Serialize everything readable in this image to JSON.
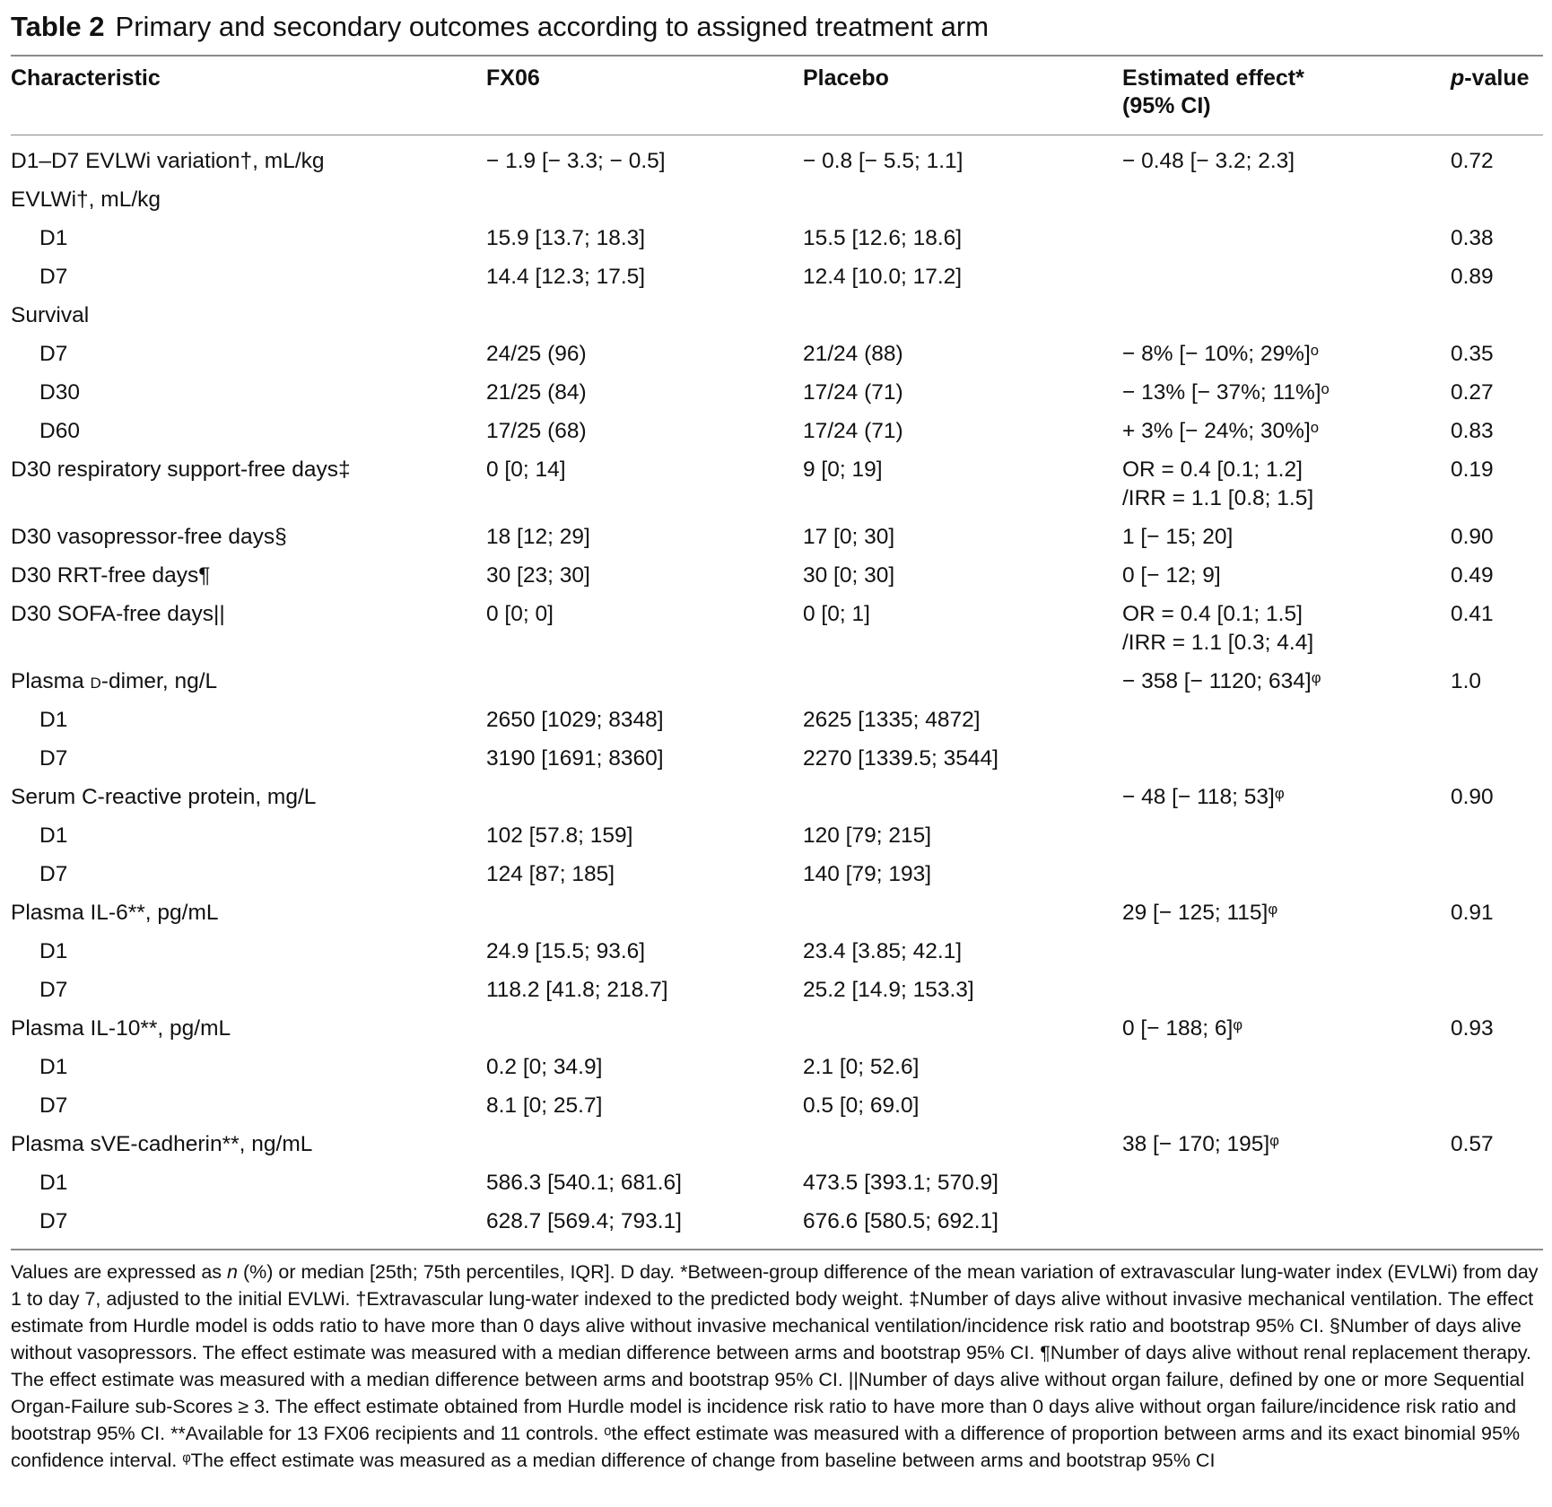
{
  "caption": {
    "label": "Table 2",
    "text": "Primary and secondary outcomes according to assigned treatment arm"
  },
  "headers": {
    "characteristic": "Characteristic",
    "fx06": "FX06",
    "placebo": "Placebo",
    "effect_line1": "Estimated effect*",
    "effect_line2": "(95% CI)",
    "pvalue_italic": "p",
    "pvalue_rest": "-value"
  },
  "rows": [
    {
      "label": "D1–D7 EVLWi variation†, mL/kg",
      "fx06": "− 1.9 [− 3.3; − 0.5]",
      "placebo": "− 0.8 [− 5.5; 1.1]",
      "effect": "− 0.48 [− 3.2; 2.3]",
      "p": "0.72"
    },
    {
      "label": "EVLWi†, mL/kg",
      "fx06": "",
      "placebo": "",
      "effect": "",
      "p": ""
    },
    {
      "label": "D1",
      "fx06": "15.9 [13.7; 18.3]",
      "placebo": "15.5 [12.6; 18.6]",
      "effect": "",
      "p": "0.38"
    },
    {
      "label": "D7",
      "fx06": "14.4 [12.3; 17.5]",
      "placebo": "12.4 [10.0; 17.2]",
      "effect": "",
      "p": "0.89"
    },
    {
      "label": "Survival",
      "fx06": "",
      "placebo": "",
      "effect": "",
      "p": ""
    },
    {
      "label": "D7",
      "fx06": "24/25 (96)",
      "placebo": "21/24 (88)",
      "effect": "− 8% [− 10%; 29%]ᵒ",
      "p": "0.35"
    },
    {
      "label": "D30",
      "fx06": "21/25 (84)",
      "placebo": "17/24 (71)",
      "effect": "− 13% [− 37%; 11%]ᵒ",
      "p": "0.27"
    },
    {
      "label": "D60",
      "fx06": "17/25 (68)",
      "placebo": "17/24 (71)",
      "effect": "+ 3% [− 24%; 30%]ᵒ",
      "p": "0.83"
    },
    {
      "label": "D30 respiratory support-free days‡",
      "fx06": "0 [0; 14]",
      "placebo": "9 [0; 19]",
      "effect": "OR = 0.4 [0.1; 1.2]\n/IRR = 1.1 [0.8; 1.5]",
      "p": "0.19"
    },
    {
      "label": "D30 vasopressor-free days§",
      "fx06": "18 [12; 29]",
      "placebo": "17 [0; 30]",
      "effect": "1 [− 15; 20]",
      "p": "0.90"
    },
    {
      "label": "D30 RRT-free days¶",
      "fx06": "30 [23; 30]",
      "placebo": "30 [0; 30]",
      "effect": "0 [− 12; 9]",
      "p": "0.49"
    },
    {
      "label": "D30 SOFA-free days||",
      "fx06": "0 [0; 0]",
      "placebo": "0 [0; 1]",
      "effect": "OR = 0.4 [0.1; 1.5]\n/IRR = 1.1 [0.3; 4.4]",
      "p": "0.41"
    },
    {
      "label_pre": "Plasma ",
      "label_sc": "d",
      "label_post": "-dimer, ng/L",
      "fx06": "",
      "placebo": "",
      "effect": "− 358 [− 1120; 634]ᵠ",
      "p": "1.0"
    },
    {
      "label": "D1",
      "fx06": "2650 [1029; 8348]",
      "placebo": "2625 [1335; 4872]",
      "effect": "",
      "p": ""
    },
    {
      "label": "D7",
      "fx06": "3190 [1691; 8360]",
      "placebo": "2270 [1339.5; 3544]",
      "effect": "",
      "p": ""
    },
    {
      "label": "Serum C-reactive protein, mg/L",
      "fx06": "",
      "placebo": "",
      "effect": "− 48 [− 118; 53]ᵠ",
      "p": "0.90"
    },
    {
      "label": "D1",
      "fx06": "102 [57.8; 159]",
      "placebo": "120 [79; 215]",
      "effect": "",
      "p": ""
    },
    {
      "label": "D7",
      "fx06": "124 [87; 185]",
      "placebo": "140 [79; 193]",
      "effect": "",
      "p": ""
    },
    {
      "label": "Plasma IL-6**, pg/mL",
      "fx06": "",
      "placebo": "",
      "effect": "29 [− 125; 115]ᵠ",
      "p": "0.91"
    },
    {
      "label": "D1",
      "fx06": "24.9 [15.5; 93.6]",
      "placebo": "23.4 [3.85; 42.1]",
      "effect": "",
      "p": ""
    },
    {
      "label": "D7",
      "fx06": "118.2 [41.8; 218.7]",
      "placebo": "25.2 [14.9; 153.3]",
      "effect": "",
      "p": ""
    },
    {
      "label": "Plasma IL-10**, pg/mL",
      "fx06": "",
      "placebo": "",
      "effect": "0 [− 188; 6]ᵠ",
      "p": "0.93"
    },
    {
      "label": "D1",
      "fx06": "0.2 [0; 34.9]",
      "placebo": "2.1 [0; 52.6]",
      "effect": "",
      "p": ""
    },
    {
      "label": "D7",
      "fx06": "8.1 [0; 25.7]",
      "placebo": "0.5 [0; 69.0]",
      "effect": "",
      "p": ""
    },
    {
      "label": "Plasma sVE-cadherin**, ng/mL",
      "fx06": "",
      "placebo": "",
      "effect": "38 [− 170; 195]ᵠ",
      "p": "0.57"
    },
    {
      "label": "D1",
      "fx06": "586.3 [540.1; 681.6]",
      "placebo": "473.5 [393.1; 570.9]",
      "effect": "",
      "p": ""
    },
    {
      "label": "D7",
      "fx06": "628.7 [569.4; 793.1]",
      "placebo": "676.6 [580.5; 692.1]",
      "effect": "",
      "p": ""
    }
  ],
  "footnote": {
    "part1": "Values are expressed as ",
    "n_italic": "n",
    "part2": " (%) or median [25th; 75th percentiles, IQR]. D day. *Between-group difference of the mean variation of extravascular lung-water index (EVLWi) from day 1 to day 7, adjusted to the initial EVLWi. †Extravascular lung-water indexed to the predicted body weight. ‡Number of days alive without invasive mechanical ventilation. The effect estimate from Hurdle model is odds ratio to have more than 0 days alive without invasive mechanical ventilation/incidence risk ratio and bootstrap 95% CI. §Number of days alive without vasopressors. The effect estimate was measured with a median difference between arms and bootstrap 95% CI. ¶Number of days alive without renal replacement therapy. The effect estimate was measured with a median difference between arms and bootstrap 95% CI. ||Number of days alive without organ failure, defined by one or more Sequential Organ-Failure sub-Scores ≥ 3. The effect estimate obtained from Hurdle model is incidence risk ratio to have more than 0 days alive without organ failure/incidence risk ratio and bootstrap 95% CI. **Available for 13 FX06 recipients and 11 controls. ᵒthe effect estimate was measured with a difference of proportion between arms and its exact binomial 95% confidence interval. ᵠThe effect estimate was measured as a median difference of change from baseline between arms and bootstrap 95% CI"
  }
}
